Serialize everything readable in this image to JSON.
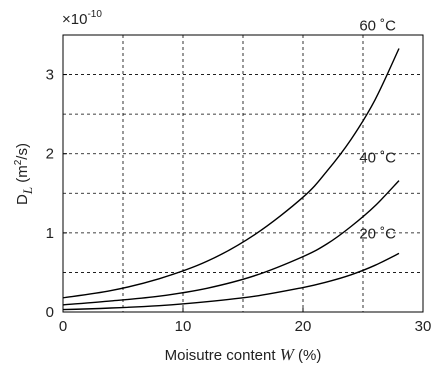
{
  "chart_data": {
    "type": "line",
    "multiplier_label": "×10",
    "multiplier_exponent": "-10",
    "xlabel_prefix": "Moisutre content ",
    "xlabel_var": "W",
    "xlabel_suffix": " (%)",
    "ylabel_main": "D",
    "ylabel_sub": "L",
    "ylabel_unit_open": " (m",
    "ylabel_unit_exp": "2",
    "ylabel_unit_close": "/s)",
    "xlim": [
      0,
      30
    ],
    "ylim": [
      0,
      3.5
    ],
    "x_ticks": [
      "0",
      "10",
      "20",
      "30"
    ],
    "x_tick_values": [
      0,
      10,
      20,
      30
    ],
    "y_ticks": [
      "0",
      "1",
      "2",
      "3"
    ],
    "y_tick_values": [
      0,
      1,
      2,
      3
    ],
    "x_grid": [
      5,
      10,
      15,
      20,
      25
    ],
    "y_grid": [
      0.5,
      1,
      1.5,
      2,
      2.5,
      3
    ],
    "grid": true,
    "series": [
      {
        "name": "60 ˚C",
        "x": [
          0,
          4,
          8,
          12,
          16,
          20,
          22,
          24,
          26,
          28
        ],
        "y": [
          0.18,
          0.27,
          0.42,
          0.64,
          0.98,
          1.45,
          1.78,
          2.18,
          2.68,
          3.33
        ]
      },
      {
        "name": "40 ˚C",
        "x": [
          0,
          4,
          8,
          12,
          16,
          20,
          22,
          24,
          26,
          28
        ],
        "y": [
          0.09,
          0.14,
          0.2,
          0.3,
          0.46,
          0.7,
          0.86,
          1.08,
          1.34,
          1.66
        ]
      },
      {
        "name": "20 ˚C",
        "x": [
          0,
          4,
          8,
          12,
          16,
          20,
          22,
          24,
          26,
          28
        ],
        "y": [
          0.03,
          0.05,
          0.08,
          0.13,
          0.2,
          0.31,
          0.38,
          0.47,
          0.59,
          0.74
        ]
      }
    ]
  }
}
